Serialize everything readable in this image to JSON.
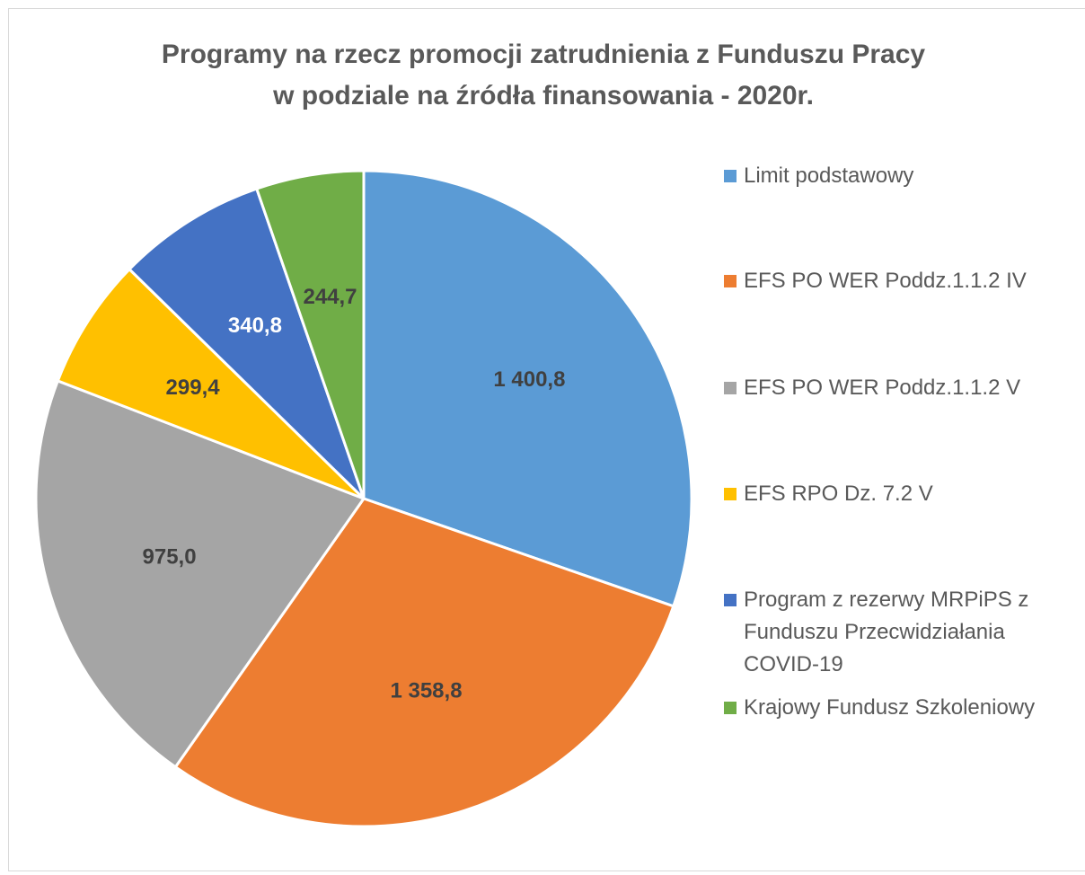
{
  "chart_data": {
    "type": "pie",
    "title": [
      "Programy na rzecz promocji zatrudnienia z Funduszu Pracy",
      "w podziale na źródła finansowania - 2020r."
    ],
    "categories": [
      "Limit podstawowy",
      "EFS PO WER Poddz.1.1.2 IV",
      "EFS PO WER Poddz.1.1.2 V",
      "EFS RPO Dz. 7.2 V",
      "Program z rezerwy MRPiPS z Funduszu Przecwidziałania COVID-19",
      "Krajowy Fundusz Szkoleniowy"
    ],
    "values": [
      1400.8,
      1358.8,
      975.0,
      299.4,
      340.8,
      244.7
    ],
    "value_labels": [
      "1 400,8",
      "1 358,8",
      "975,0",
      "299,4",
      "340,8",
      "244,7"
    ],
    "colors": [
      "#5b9bd5",
      "#ed7d31",
      "#a5a5a5",
      "#ffc000",
      "#4472c4",
      "#70ad47"
    ],
    "label_colors": [
      "#404040",
      "#404040",
      "#404040",
      "#404040",
      "#ffffff",
      "#404040"
    ],
    "legend": "right"
  }
}
